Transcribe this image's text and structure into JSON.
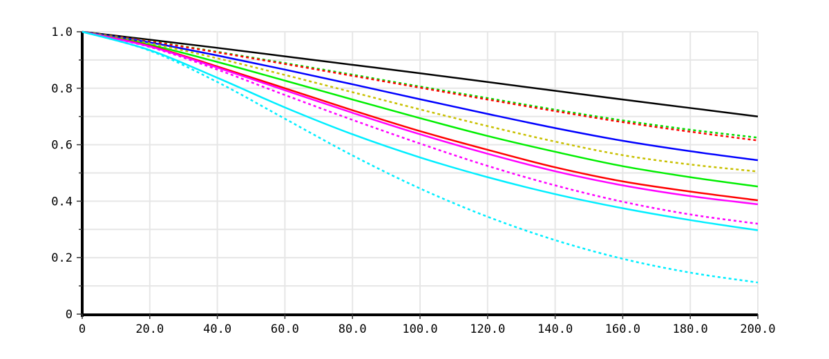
{
  "chart_data": {
    "type": "line",
    "title": "",
    "xlabel": "",
    "ylabel": "",
    "xlim": [
      0,
      200
    ],
    "ylim": [
      0,
      1.0
    ],
    "grid": true,
    "x_ticks": [
      {
        "value": 0,
        "label": "0"
      },
      {
        "value": 20,
        "label": "20.0"
      },
      {
        "value": 40,
        "label": "40.0"
      },
      {
        "value": 60,
        "label": "60.0"
      },
      {
        "value": 80,
        "label": "80.0"
      },
      {
        "value": 100,
        "label": "100.0"
      },
      {
        "value": 120,
        "label": "120.0"
      },
      {
        "value": 140,
        "label": "140.0"
      },
      {
        "value": 160,
        "label": "160.0"
      },
      {
        "value": 180,
        "label": "180.0"
      },
      {
        "value": 200,
        "label": "200.0"
      }
    ],
    "y_ticks": [
      {
        "value": 0,
        "label": "0"
      },
      {
        "value": 0.2,
        "label": "0.2"
      },
      {
        "value": 0.4,
        "label": "0.4"
      },
      {
        "value": 0.6,
        "label": "0.6"
      },
      {
        "value": 0.8,
        "label": "0.8"
      },
      {
        "value": 1.0,
        "label": "1.0"
      }
    ],
    "x": [
      0,
      20,
      40,
      60,
      80,
      100,
      120,
      140,
      160,
      180,
      200
    ],
    "series": [
      {
        "color": "#000000",
        "dash": "solid",
        "values": [
          1.0,
          0.972,
          0.943,
          0.913,
          0.883,
          0.853,
          0.822,
          0.791,
          0.76,
          0.73,
          0.7
        ]
      },
      {
        "color": "#00dd00",
        "dash": "dotted",
        "values": [
          1.0,
          0.967,
          0.929,
          0.889,
          0.848,
          0.806,
          0.765,
          0.724,
          0.686,
          0.653,
          0.625
        ]
      },
      {
        "color": "#ff0000",
        "dash": "dotted",
        "values": [
          1.0,
          0.966,
          0.927,
          0.886,
          0.844,
          0.802,
          0.76,
          0.719,
          0.68,
          0.646,
          0.615
        ]
      },
      {
        "color": "#0000ff",
        "dash": "solid",
        "values": [
          1.0,
          0.962,
          0.916,
          0.866,
          0.814,
          0.761,
          0.709,
          0.659,
          0.614,
          0.577,
          0.545
        ]
      },
      {
        "color": "#c8c000",
        "dash": "dotted",
        "values": [
          1.0,
          0.959,
          0.906,
          0.847,
          0.786,
          0.725,
          0.666,
          0.611,
          0.563,
          0.53,
          0.505
        ]
      },
      {
        "color": "#00ee00",
        "dash": "solid",
        "values": [
          1.0,
          0.954,
          0.893,
          0.827,
          0.76,
          0.694,
          0.631,
          0.575,
          0.524,
          0.485,
          0.452
        ]
      },
      {
        "color": "#ff0000",
        "dash": "solid",
        "values": [
          1.0,
          0.95,
          0.877,
          0.8,
          0.722,
          0.648,
          0.582,
          0.52,
          0.47,
          0.434,
          0.403
        ]
      },
      {
        "color": "#ff00ff",
        "dash": "solid",
        "values": [
          1.0,
          0.948,
          0.873,
          0.793,
          0.713,
          0.637,
          0.568,
          0.506,
          0.456,
          0.418,
          0.389
        ]
      },
      {
        "color": "#ff00ff",
        "dash": "dotted",
        "values": [
          1.0,
          0.946,
          0.866,
          0.776,
          0.688,
          0.604,
          0.525,
          0.456,
          0.398,
          0.353,
          0.32
        ]
      },
      {
        "color": "#00eeff",
        "dash": "solid",
        "values": [
          1.0,
          0.935,
          0.837,
          0.732,
          0.637,
          0.555,
          0.485,
          0.425,
          0.375,
          0.333,
          0.297
        ]
      },
      {
        "color": "#00eeff",
        "dash": "dotted",
        "values": [
          1.0,
          0.933,
          0.822,
          0.692,
          0.562,
          0.445,
          0.345,
          0.262,
          0.196,
          0.147,
          0.112
        ]
      }
    ]
  }
}
